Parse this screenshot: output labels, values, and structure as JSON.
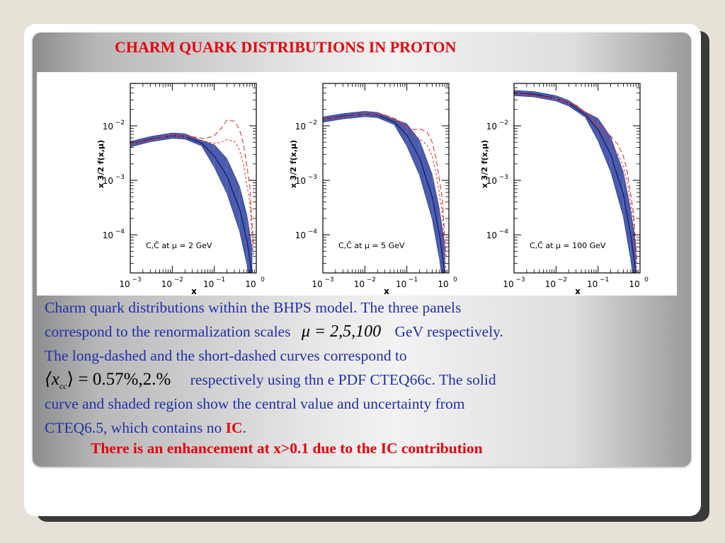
{
  "title": "CHARM QUARK DISTRIBUTIONS IN PROTON",
  "panels": [
    {
      "ylabel": "x 3/2 f(x,μ)",
      "xlabel": "x",
      "legend": "C,C̄  at μ = 2 GeV"
    },
    {
      "ylabel": "x 3/2 f(x,μ)",
      "xlabel": "x",
      "legend": "C,C̄  at μ = 5 GeV"
    },
    {
      "ylabel": "x 3/2 f(x,μ)",
      "xlabel": "x",
      "legend": "C,C̄  at μ = 100 GeV"
    }
  ],
  "ticks": {
    "x": [
      "10",
      "10",
      "10",
      "10"
    ],
    "x_exp": [
      "−3",
      "−2",
      "−1",
      "0"
    ],
    "y": [
      "10",
      "10",
      "10"
    ],
    "y_exp": [
      "−2",
      "−3",
      "−4"
    ]
  },
  "caption": {
    "line1": "Charm quark distributions within the BHPS model. The three panels",
    "line2a": "correspond  to the renormalization scales",
    "mu_formula": "μ = 2,5,100",
    "line2b": "GeV respectively.",
    "line3": "The long-dashed and the short-dashed  curves  correspond  to",
    "xcc_formula": "⟨x",
    "xcc_sub": "cc",
    "xcc_value": "⟩ = 0.57%,2.%",
    "line4": "respectively  using thn e PDF CTEQ66c. The solid",
    "line5": "curve and shaded region show the central value and uncertainty from",
    "line6a": "CTEQ6.5, which contains no",
    "line6_ic": "IC",
    "line6b": "."
  },
  "conclusion": "There  is an  enhancement at x>0.1 due to the IC contribution",
  "colors": {
    "title": "#e8000b",
    "caption": "#2030a8",
    "band": "#2b3f9e",
    "dashed": "#e03030"
  },
  "chart_data": [
    {
      "type": "line",
      "xscale": "log",
      "yscale": "log",
      "xlim": [
        0.001,
        1
      ],
      "ylim": [
        2e-05,
        0.06
      ],
      "legend": "C,C̄  at μ = 2 GeV",
      "series": [
        {
          "x": [
            0.001,
            0.003,
            0.01,
            0.02,
            0.05,
            0.1,
            0.2,
            0.4,
            0.6,
            0.8
          ],
          "y": [
            0.0046,
            0.0057,
            0.0066,
            0.0064,
            0.0048,
            0.0028,
            0.0012,
            0.0003,
            8e-05,
            1.8e-05
          ]
        },
        {
          "x": [
            0.001,
            0.01,
            0.03,
            0.06,
            0.1,
            0.15,
            0.2,
            0.3,
            0.4,
            0.5,
            0.7,
            0.85
          ],
          "y": [
            0.0046,
            0.0068,
            0.0063,
            0.0058,
            0.0066,
            0.0092,
            0.0128,
            0.0122,
            0.0085,
            0.0045,
            0.0008,
            7e-05
          ]
        },
        {
          "x": [
            0.001,
            0.01,
            0.03,
            0.06,
            0.1,
            0.15,
            0.2,
            0.3,
            0.4,
            0.5,
            0.7,
            0.85
          ],
          "y": [
            0.0046,
            0.0067,
            0.0061,
            0.0052,
            0.0048,
            0.005,
            0.0056,
            0.0052,
            0.0036,
            0.0019,
            0.0004,
            4e-05
          ]
        }
      ]
    },
    {
      "type": "line",
      "xscale": "log",
      "yscale": "log",
      "xlim": [
        0.001,
        1
      ],
      "ylim": [
        2e-05,
        0.06
      ],
      "legend": "C,C̄  at μ = 5 GeV",
      "series": [
        {
          "x": [
            0.001,
            0.003,
            0.01,
            0.02,
            0.05,
            0.1,
            0.2,
            0.4,
            0.6,
            0.8
          ],
          "y": [
            0.013,
            0.015,
            0.0165,
            0.0158,
            0.0118,
            0.0068,
            0.0026,
            0.0005,
            0.0001,
            2e-05
          ]
        },
        {
          "x": [
            0.001,
            0.01,
            0.03,
            0.06,
            0.1,
            0.15,
            0.2,
            0.3,
            0.4,
            0.5,
            0.7,
            0.85
          ],
          "y": [
            0.013,
            0.0167,
            0.0158,
            0.013,
            0.0098,
            0.0085,
            0.0088,
            0.0078,
            0.005,
            0.0025,
            0.00045,
            4e-05
          ]
        },
        {
          "x": [
            0.001,
            0.01,
            0.03,
            0.06,
            0.1,
            0.15,
            0.2,
            0.3,
            0.4,
            0.5,
            0.7,
            0.85
          ],
          "y": [
            0.013,
            0.0166,
            0.0155,
            0.0125,
            0.0085,
            0.0065,
            0.0058,
            0.0045,
            0.0028,
            0.0013,
            0.00025,
            2e-05
          ]
        }
      ]
    },
    {
      "type": "line",
      "xscale": "log",
      "yscale": "log",
      "xlim": [
        0.001,
        1
      ],
      "ylim": [
        2e-05,
        0.06
      ],
      "legend": "C,C̄  at μ = 100 GeV",
      "series": [
        {
          "x": [
            0.001,
            0.003,
            0.01,
            0.02,
            0.05,
            0.1,
            0.2,
            0.4,
            0.6,
            0.8
          ],
          "y": [
            0.04,
            0.038,
            0.032,
            0.026,
            0.016,
            0.0085,
            0.003,
            0.00055,
            0.0001,
            2e-05
          ]
        },
        {
          "x": [
            0.001,
            0.01,
            0.03,
            0.06,
            0.1,
            0.15,
            0.2,
            0.3,
            0.4,
            0.5,
            0.7,
            0.85
          ],
          "y": [
            0.04,
            0.032,
            0.024,
            0.016,
            0.0105,
            0.008,
            0.0065,
            0.0045,
            0.0028,
            0.0014,
            0.00025,
            3e-05
          ]
        },
        {
          "x": [
            0.001,
            0.01,
            0.03,
            0.06,
            0.1,
            0.15,
            0.2,
            0.3,
            0.4,
            0.5,
            0.7,
            0.85
          ],
          "y": [
            0.04,
            0.032,
            0.023,
            0.015,
            0.0092,
            0.0062,
            0.0046,
            0.003,
            0.0018,
            0.0009,
            0.00018,
            2e-05
          ]
        }
      ]
    }
  ]
}
